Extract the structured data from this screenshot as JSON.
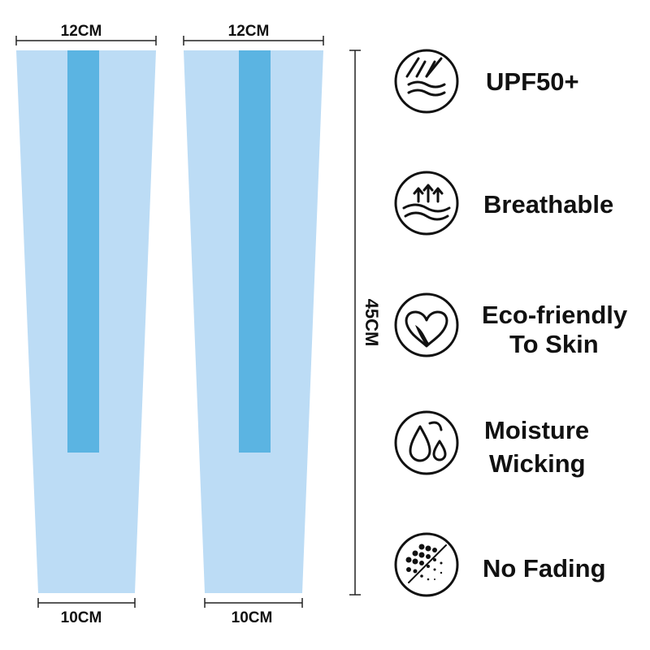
{
  "dimensions": {
    "top": [
      "12CM",
      "12CM"
    ],
    "bottom": [
      "10CM",
      "10CM"
    ],
    "length": "45CM"
  },
  "features": [
    {
      "lines": [
        "UPF50+"
      ]
    },
    {
      "lines": [
        "Breathable"
      ]
    },
    {
      "lines": [
        "Eco-friendly",
        "To Skin"
      ]
    },
    {
      "lines": [
        "Moisture",
        "Wicking"
      ]
    },
    {
      "lines": [
        "No Fading"
      ]
    }
  ]
}
